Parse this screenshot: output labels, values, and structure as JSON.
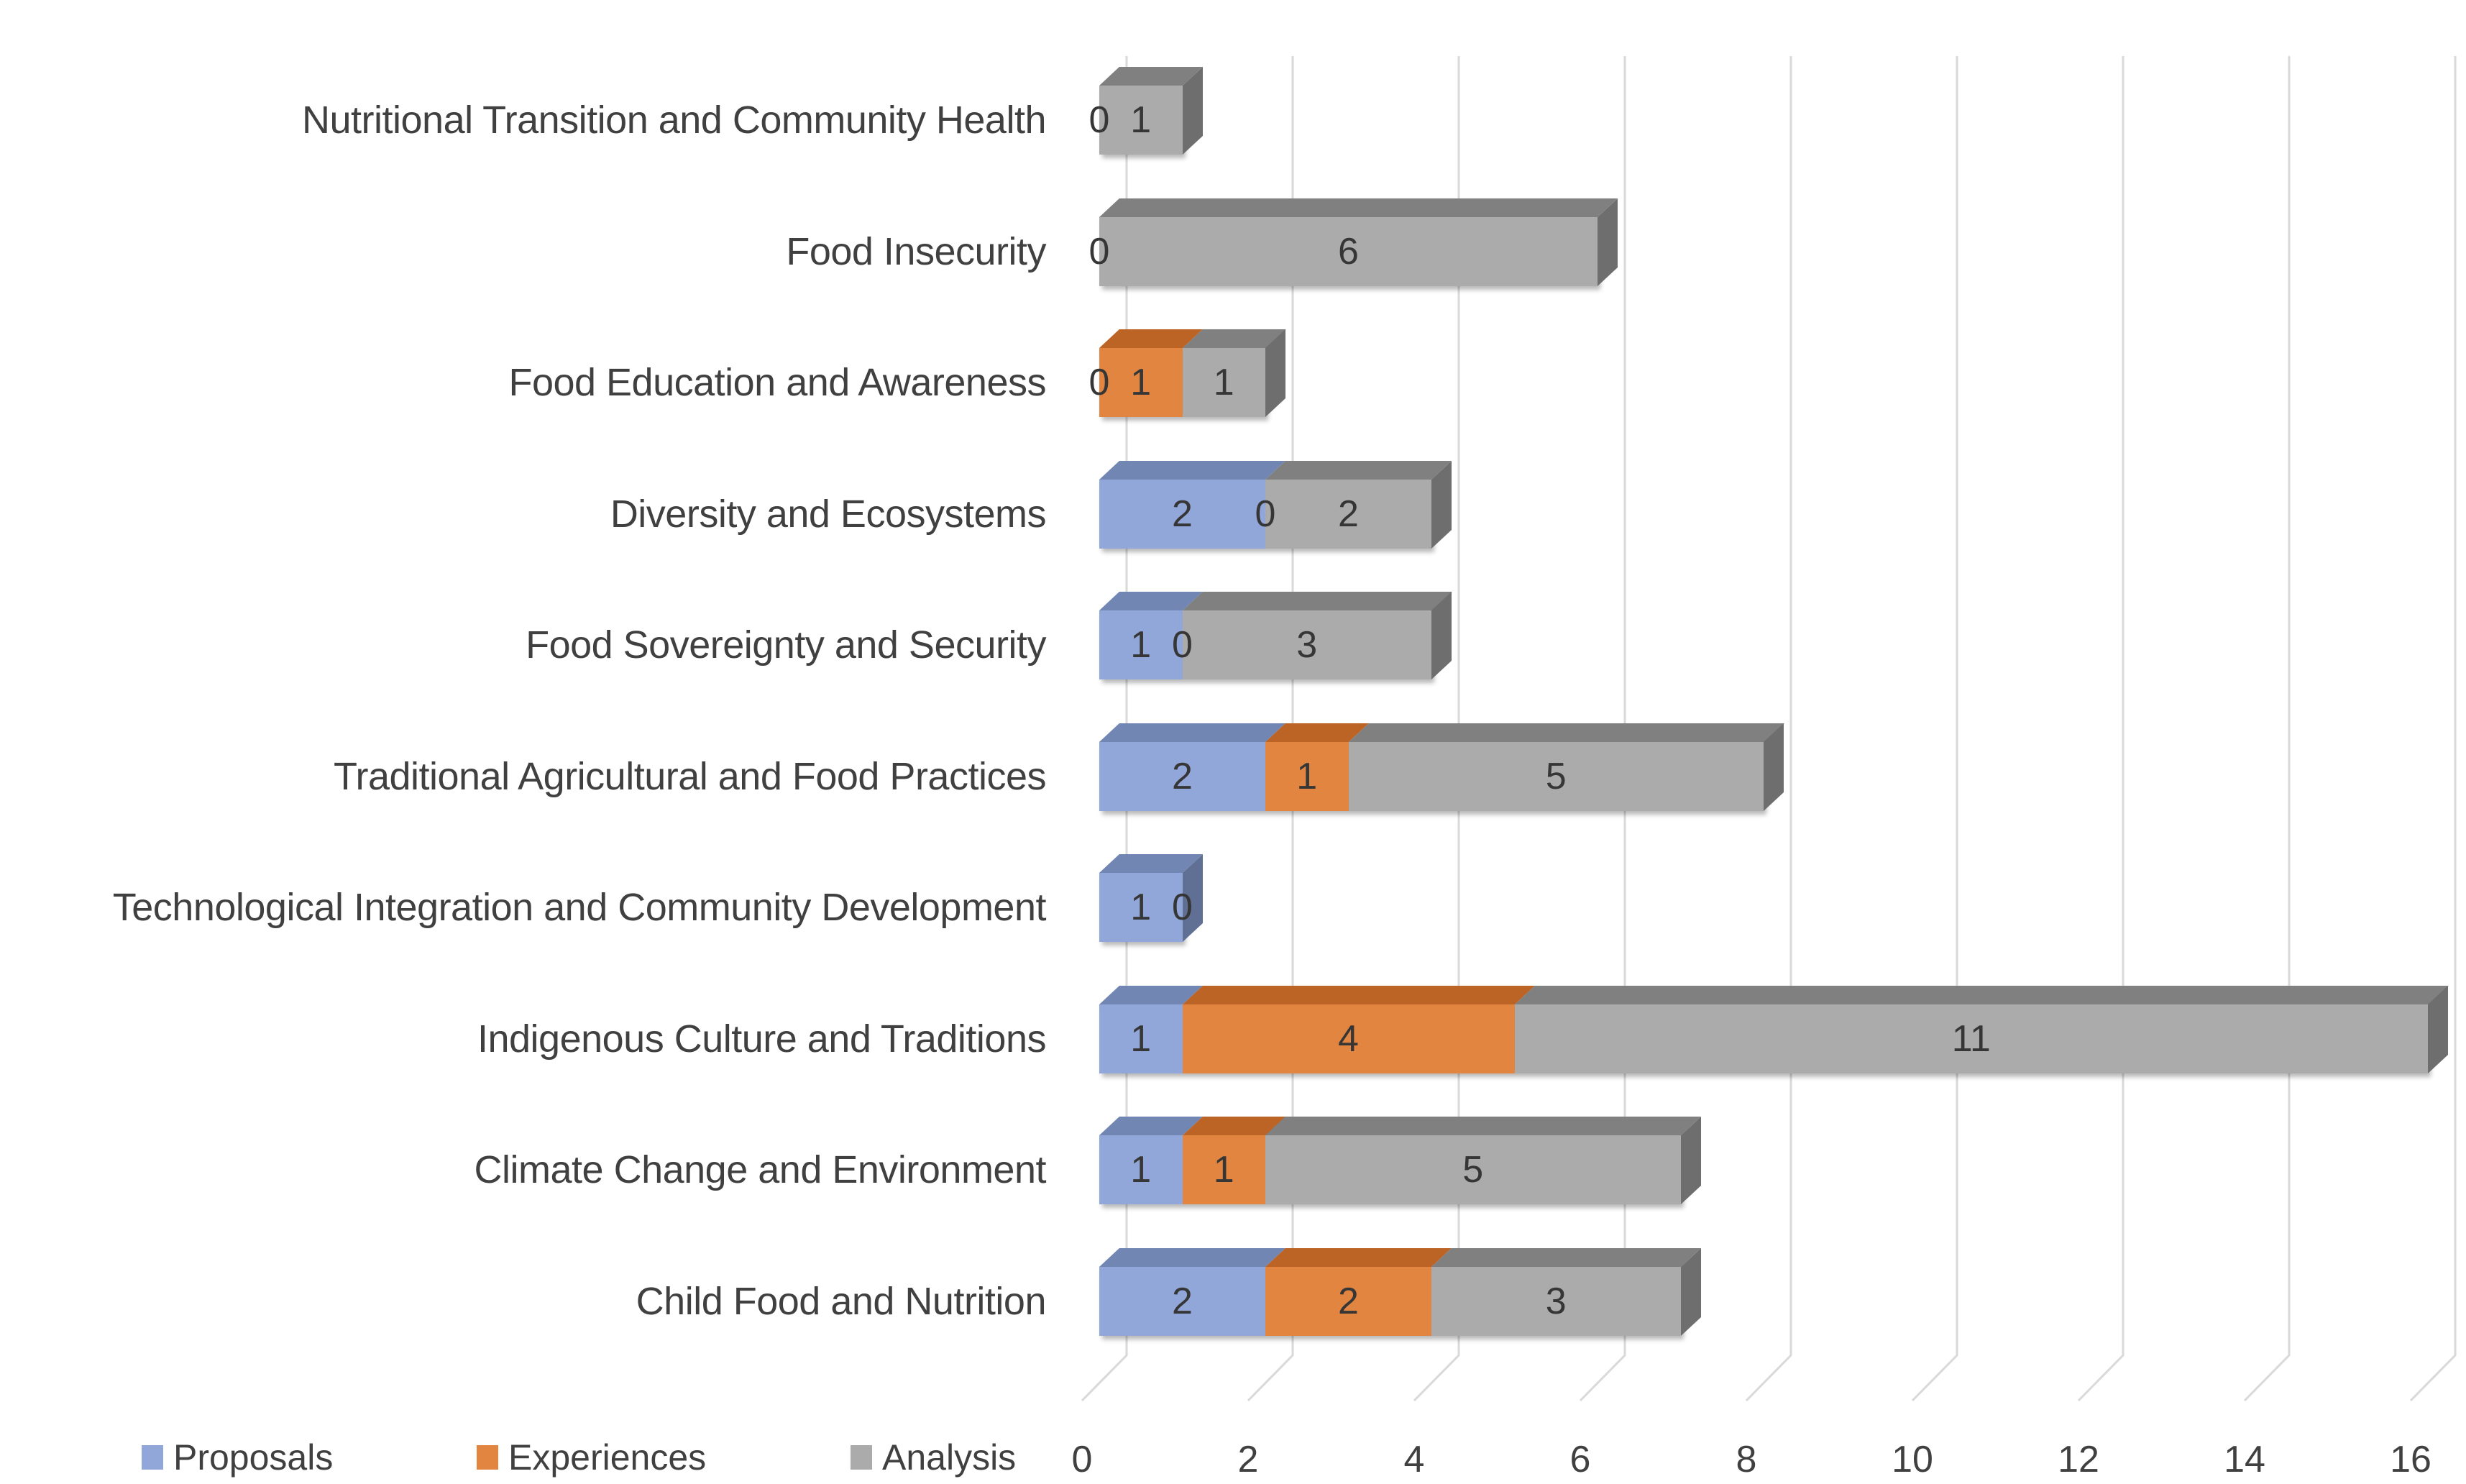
{
  "page": {
    "background": "#FFFFFF"
  },
  "chart_data": {
    "type": "bar",
    "variant": "3d-horizontal-stacked",
    "title": "",
    "xlabel": "",
    "ylabel": "",
    "categories": [
      "Nutritional Transition and Community Health",
      "Food Insecurity",
      "Food Education and Awareness",
      "Diversity and Ecosystems",
      "Food Sovereignty and Security",
      "Traditional Agricultural and Food Practices",
      "Technological Integration and Community Development",
      "Indigenous Culture and Traditions",
      "Climate Change and Environment",
      "Child Food and Nutrition"
    ],
    "series": [
      {
        "name": "Proposals",
        "color": "#91A6D9",
        "top_color": "#7186B3",
        "side_color": "#5F7094",
        "values": [
          0,
          0,
          0,
          2,
          1,
          2,
          1,
          1,
          1,
          2
        ]
      },
      {
        "name": "Experiences",
        "color": "#E28540",
        "top_color": "#BB6426",
        "side_color": "#9B5321",
        "values": [
          0,
          0,
          1,
          0,
          0,
          1,
          0,
          4,
          1,
          2
        ]
      },
      {
        "name": "Analysis",
        "color": "#ABABAB",
        "top_color": "#808080",
        "side_color": "#6E6E6E",
        "values": [
          1,
          6,
          1,
          2,
          3,
          5,
          0,
          11,
          5,
          3
        ]
      }
    ],
    "data_labels": [
      [
        {
          "text": "0",
          "at": 0
        },
        {
          "text": "1",
          "at": 0.5
        }
      ],
      [
        {
          "text": "0",
          "at": 0
        },
        {
          "text": "6",
          "at": 3
        }
      ],
      [
        {
          "text": "0",
          "at": 0
        },
        {
          "text": "1",
          "at": 0.5
        },
        {
          "text": "1",
          "at": 1.5
        }
      ],
      [
        {
          "text": "2",
          "at": 1
        },
        {
          "text": "0",
          "at": 2
        },
        {
          "text": "2",
          "at": 3
        }
      ],
      [
        {
          "text": "1",
          "at": 0.5
        },
        {
          "text": "0",
          "at": 1
        },
        {
          "text": "3",
          "at": 2.5
        }
      ],
      [
        {
          "text": "2",
          "at": 1
        },
        {
          "text": "1",
          "at": 2.5
        },
        {
          "text": "5",
          "at": 5.5
        }
      ],
      [
        {
          "text": "1",
          "at": 0.5
        },
        {
          "text": "0",
          "at": 1
        }
      ],
      [
        {
          "text": "1",
          "at": 0.5
        },
        {
          "text": "4",
          "at": 3
        },
        {
          "text": "11",
          "at": 10.5
        }
      ],
      [
        {
          "text": "1",
          "at": 0.5
        },
        {
          "text": "1",
          "at": 1.5
        },
        {
          "text": "5",
          "at": 4.5
        }
      ],
      [
        {
          "text": "2",
          "at": 1
        },
        {
          "text": "2",
          "at": 3
        },
        {
          "text": "3",
          "at": 5.5
        }
      ]
    ],
    "x_ticks": [
      "0",
      "2",
      "4",
      "6",
      "8",
      "10",
      "12",
      "14",
      "16"
    ],
    "xlim": [
      0,
      16
    ],
    "grid": "vertical",
    "gridline_color": "#D9D9D9",
    "text_color": "#404040",
    "legend_position": "bottom-left",
    "legend": [
      {
        "label": "Proposals",
        "color": "#91A6D9"
      },
      {
        "label": "Experiences",
        "color": "#E28540"
      },
      {
        "label": "Analysis",
        "color": "#ABABAB"
      }
    ]
  }
}
